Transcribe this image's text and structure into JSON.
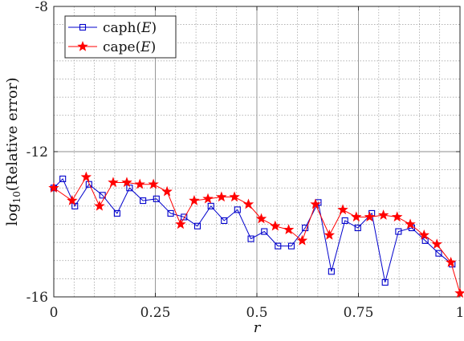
{
  "chart_data": {
    "type": "line",
    "xlabel": "r",
    "ylabel_prefix": "log",
    "ylabel_sub": "10",
    "ylabel_rest": "(Relative error)",
    "xlim": [
      0,
      1
    ],
    "ylim": [
      -16,
      -8
    ],
    "x_ticks": [
      0,
      0.25,
      0.5,
      0.75,
      1
    ],
    "x_tick_labels": [
      "0",
      "0.25",
      "0.5",
      "0.75",
      "1"
    ],
    "y_ticks": [
      -16,
      -12,
      -8
    ],
    "y_tick_labels": [
      "-16",
      "-12",
      "-8"
    ],
    "grid": true,
    "minor_grid": true,
    "legend_position": "top-left",
    "series": [
      {
        "name_prefix": "caph(",
        "name_var": "E",
        "name_suffix": ")",
        "color": "#0000cc",
        "marker": "square",
        "x": [
          0.0,
          0.0221,
          0.0519,
          0.0866,
          0.1199,
          0.1559,
          0.1865,
          0.2196,
          0.2526,
          0.2877,
          0.3207,
          0.3537,
          0.3868,
          0.4194,
          0.4522,
          0.4853,
          0.5183,
          0.5519,
          0.5849,
          0.6188,
          0.6511,
          0.6835,
          0.7168,
          0.7485,
          0.7829,
          0.8156,
          0.8486,
          0.8813,
          0.9144,
          0.9476,
          0.9808
        ],
        "y": [
          -13.0,
          -12.75,
          -13.5,
          -12.9,
          -13.2,
          -13.7,
          -13.0,
          -13.35,
          -13.3,
          -13.7,
          -13.8,
          -14.05,
          -13.5,
          -13.9,
          -13.6,
          -14.4,
          -14.2,
          -14.6,
          -14.6,
          -14.1,
          -13.4,
          -15.3,
          -13.9,
          -14.1,
          -13.7,
          -15.6,
          -14.2,
          -14.1,
          -14.45,
          -14.8,
          -15.1
        ]
      },
      {
        "name_prefix": "cape(",
        "name_var": "E",
        "name_suffix": ")",
        "color": "#ff0000",
        "marker": "star",
        "x": [
          0.0,
          0.0451,
          0.0797,
          0.1125,
          0.1462,
          0.1798,
          0.2119,
          0.2453,
          0.2789,
          0.3121,
          0.3457,
          0.3795,
          0.4128,
          0.4448,
          0.4792,
          0.5109,
          0.5451,
          0.5782,
          0.6116,
          0.6443,
          0.6785,
          0.7115,
          0.7447,
          0.7775,
          0.8115,
          0.8453,
          0.8776,
          0.9116,
          0.9431,
          0.9776,
          1.0
        ],
        "y": [
          -13.0,
          -13.35,
          -12.7,
          -13.5,
          -12.85,
          -12.85,
          -12.9,
          -12.9,
          -13.1,
          -14.0,
          -13.35,
          -13.3,
          -13.25,
          -13.25,
          -13.45,
          -13.85,
          -14.05,
          -14.15,
          -14.45,
          -13.45,
          -14.3,
          -13.6,
          -13.8,
          -13.8,
          -13.75,
          -13.8,
          -14.0,
          -14.3,
          -14.55,
          -15.05,
          -15.9
        ]
      }
    ]
  }
}
